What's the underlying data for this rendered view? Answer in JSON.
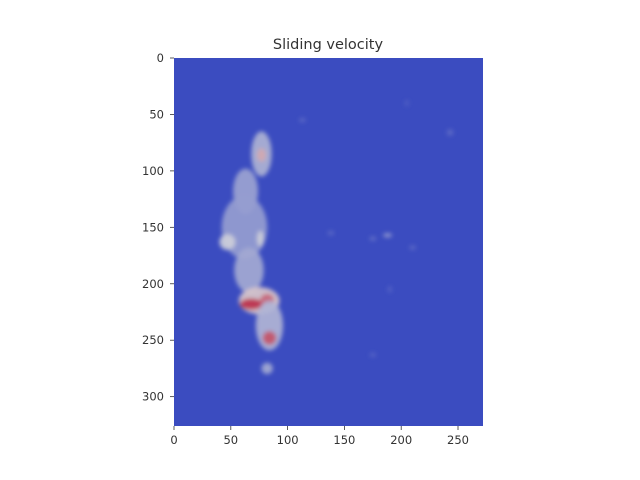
{
  "chart_data": {
    "type": "heatmap",
    "title": "Sliding velocity",
    "xlabel": "",
    "ylabel": "",
    "xlim": [
      0,
      272
    ],
    "ylim": [
      326,
      0
    ],
    "x_ticks": [
      0,
      50,
      100,
      150,
      200,
      250
    ],
    "y_ticks": [
      0,
      50,
      100,
      150,
      200,
      250,
      300
    ],
    "colormap": "coolwarm",
    "grid": false,
    "colors": {
      "low": "#3b4cc0",
      "mid": "#dddddd",
      "high": "#b40426",
      "axis_text": "#333333"
    },
    "features": [
      {
        "x": 77,
        "y": 85,
        "rx": 9,
        "ry": 20,
        "v": 0.35
      },
      {
        "x": 77,
        "y": 86,
        "rx": 4,
        "ry": 6,
        "v": 0.62
      },
      {
        "x": 63,
        "y": 118,
        "rx": 11,
        "ry": 20,
        "v": 0.3
      },
      {
        "x": 62,
        "y": 150,
        "rx": 20,
        "ry": 28,
        "v": 0.28
      },
      {
        "x": 47,
        "y": 163,
        "rx": 7,
        "ry": 7,
        "v": 0.45
      },
      {
        "x": 76,
        "y": 160,
        "rx": 3,
        "ry": 7,
        "v": 0.45
      },
      {
        "x": 66,
        "y": 188,
        "rx": 13,
        "ry": 20,
        "v": 0.32
      },
      {
        "x": 75,
        "y": 215,
        "rx": 18,
        "ry": 12,
        "v": 0.55
      },
      {
        "x": 68,
        "y": 218,
        "rx": 10,
        "ry": 5,
        "v": 0.9
      },
      {
        "x": 82,
        "y": 214,
        "rx": 6,
        "ry": 5,
        "v": 0.78
      },
      {
        "x": 84,
        "y": 237,
        "rx": 12,
        "ry": 22,
        "v": 0.36
      },
      {
        "x": 84,
        "y": 248,
        "rx": 6,
        "ry": 6,
        "v": 0.82
      },
      {
        "x": 82,
        "y": 275,
        "rx": 5,
        "ry": 5,
        "v": 0.32
      },
      {
        "x": 188,
        "y": 157,
        "rx": 4,
        "ry": 2,
        "v": 0.25
      },
      {
        "x": 175,
        "y": 160,
        "rx": 3,
        "ry": 2,
        "v": 0.12
      },
      {
        "x": 210,
        "y": 168,
        "rx": 3,
        "ry": 2,
        "v": 0.1
      },
      {
        "x": 138,
        "y": 155,
        "rx": 3,
        "ry": 2,
        "v": 0.1
      },
      {
        "x": 113,
        "y": 55,
        "rx": 3,
        "ry": 2,
        "v": 0.1
      },
      {
        "x": 243,
        "y": 66,
        "rx": 3,
        "ry": 3,
        "v": 0.1
      },
      {
        "x": 190,
        "y": 205,
        "rx": 2,
        "ry": 3,
        "v": 0.08
      },
      {
        "x": 175,
        "y": 263,
        "rx": 3,
        "ry": 2,
        "v": 0.08
      },
      {
        "x": 205,
        "y": 40,
        "rx": 2,
        "ry": 3,
        "v": 0.06
      }
    ]
  }
}
